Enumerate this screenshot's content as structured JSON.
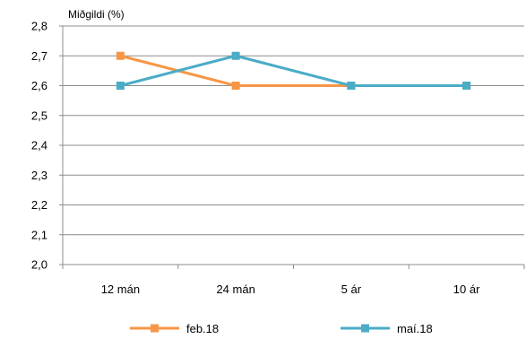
{
  "chart_data": {
    "type": "line",
    "ylabel": "Miðgildi (%)",
    "xlabel": "",
    "categories": [
      "12 mán",
      "24 mán",
      "5 ár",
      "10 ár"
    ],
    "ylim": [
      2.0,
      2.8
    ],
    "yticks": [
      "2,0",
      "2,1",
      "2,2",
      "2,3",
      "2,4",
      "2,5",
      "2,6",
      "2,7",
      "2,8"
    ],
    "grid": true,
    "legend_position": "bottom",
    "series": [
      {
        "name": "feb.18",
        "values": [
          2.7,
          2.6,
          2.6,
          2.6
        ],
        "color": "#F79646",
        "marker": "square"
      },
      {
        "name": "maí.18",
        "values": [
          2.6,
          2.7,
          2.6,
          2.6
        ],
        "color": "#4BACC6",
        "marker": "square"
      }
    ]
  }
}
